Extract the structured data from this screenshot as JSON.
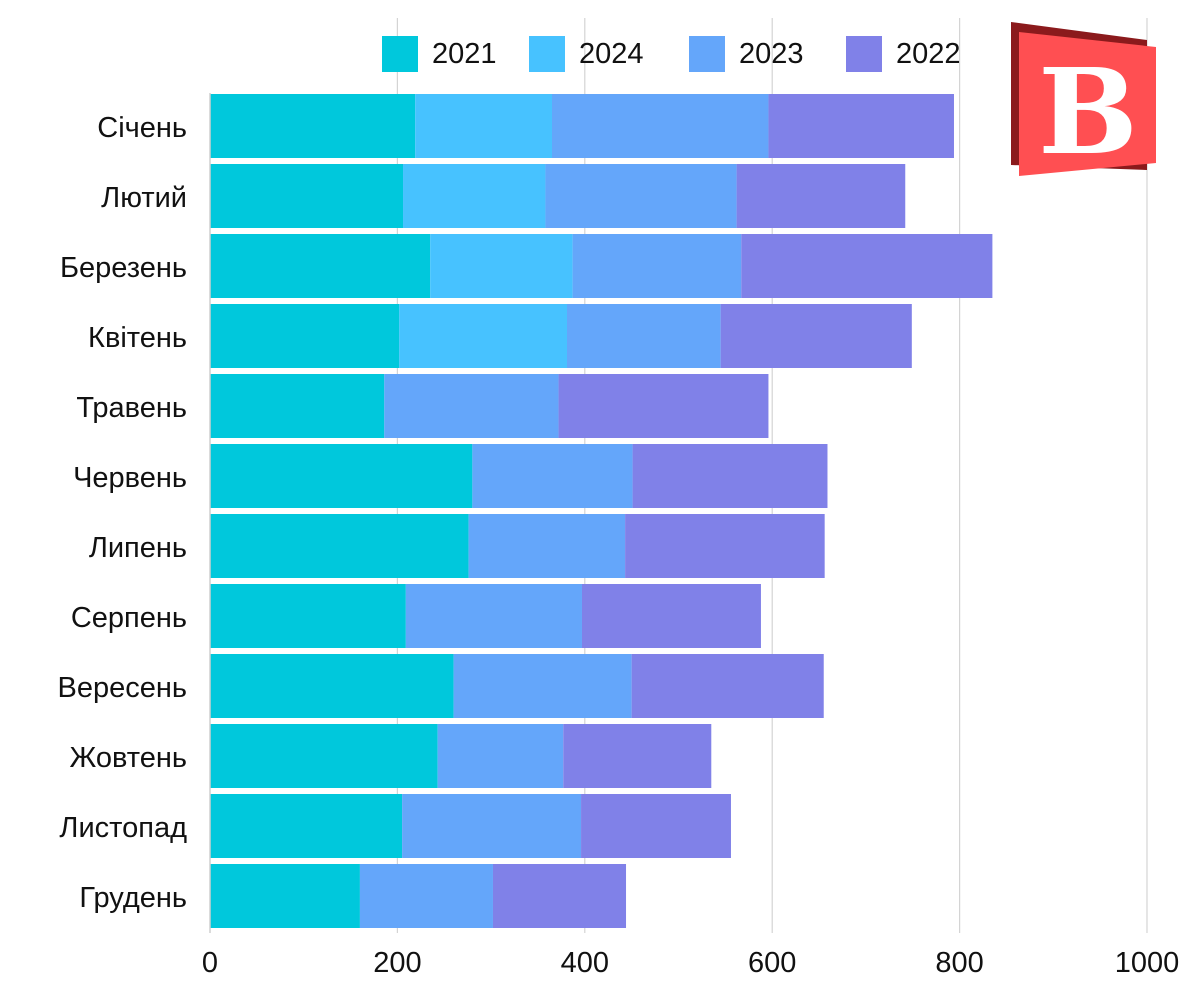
{
  "chart_data": {
    "type": "bar",
    "orientation": "horizontal",
    "stacked": true,
    "title": "",
    "xlabel": "",
    "ylabel": "",
    "xlim": [
      0,
      1000
    ],
    "x_ticks": [
      "0",
      "200",
      "400",
      "600",
      "800",
      "1000"
    ],
    "grid": "vertical",
    "legend_position": "top",
    "categories": [
      "Січень",
      "Лютий",
      "Березень",
      "Квітень",
      "Травень",
      "Червень",
      "Липень",
      "Серпень",
      "Вересень",
      "Жовтень",
      "Листопад",
      "Грудень"
    ],
    "series": [
      {
        "name": "2021",
        "color": "#00c8dc",
        "values": [
          219,
          206,
          235,
          202,
          186,
          280,
          276,
          209,
          260,
          243,
          205,
          160
        ]
      },
      {
        "name": "2024",
        "color": "#47c2ff",
        "values": [
          146,
          152,
          152,
          179,
          0,
          0,
          0,
          0,
          0,
          0,
          0,
          0
        ]
      },
      {
        "name": "2023",
        "color": "#64a6fa",
        "values": [
          231,
          204,
          180,
          164,
          186,
          171,
          167,
          188,
          190,
          134,
          191,
          142
        ]
      },
      {
        "name": "2022",
        "color": "#8081e8",
        "values": [
          198,
          180,
          268,
          204,
          224,
          208,
          213,
          191,
          205,
          158,
          160,
          142
        ]
      }
    ]
  },
  "logo": {
    "letter": "B",
    "color_front": "#ff4f52",
    "color_back": "#8b1a1c"
  }
}
